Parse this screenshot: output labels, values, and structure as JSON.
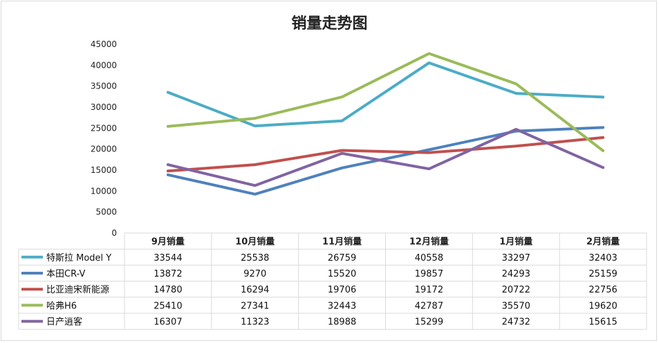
{
  "chart_data": {
    "type": "line",
    "title": "销量走势图",
    "categories": [
      "9月销量",
      "10月销量",
      "11月销量",
      "12月销量",
      "1月销量",
      "2月销量"
    ],
    "ylim": [
      0,
      45000
    ],
    "yticks": [
      0,
      5000,
      10000,
      15000,
      20000,
      25000,
      30000,
      35000,
      40000,
      45000
    ],
    "grid": false,
    "legend": "data-table",
    "series": [
      {
        "name": "特斯拉 Model Y",
        "color": "#4bacc6",
        "values": [
          33544,
          25538,
          26759,
          40558,
          33297,
          32403
        ]
      },
      {
        "name": "本田CR-V",
        "color": "#4f81bd",
        "values": [
          13872,
          9270,
          15520,
          19857,
          24293,
          25159
        ]
      },
      {
        "name": "比亚迪宋新能源",
        "color": "#c0504d",
        "values": [
          14780,
          16294,
          19706,
          19172,
          20722,
          22756
        ]
      },
      {
        "name": "哈弗H6",
        "color": "#9bbb59",
        "values": [
          25410,
          27341,
          32443,
          42787,
          35570,
          19620
        ]
      },
      {
        "name": "日产逍客",
        "color": "#8064a2",
        "values": [
          16307,
          11323,
          18988,
          15299,
          24732,
          15615
        ]
      }
    ]
  }
}
